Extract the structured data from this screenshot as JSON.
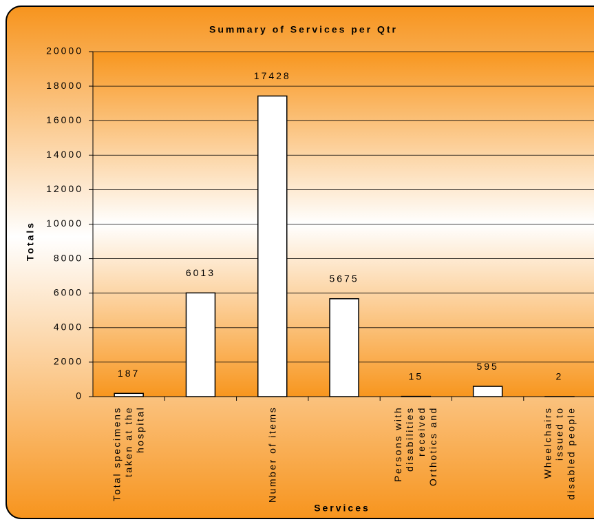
{
  "chart_data": {
    "type": "bar",
    "title": "Summary of Services per Qtr",
    "y_label": "Totals",
    "x_label": "Services",
    "categories": [
      "Total specimens taken at the hospital",
      null,
      "Number of items",
      null,
      "Persons with disabilities received Orthotics and",
      null,
      "Wheelchairs issued to disabled people"
    ],
    "values": [
      187,
      6013,
      17428,
      5675,
      15,
      595,
      2
    ],
    "color": "#ffffff",
    "ylim": [
      0,
      20000
    ],
    "yticks": [
      0,
      2000,
      4000,
      6000,
      8000,
      10000,
      12000,
      14000,
      16000,
      18000,
      20000
    ],
    "grid": true
  }
}
